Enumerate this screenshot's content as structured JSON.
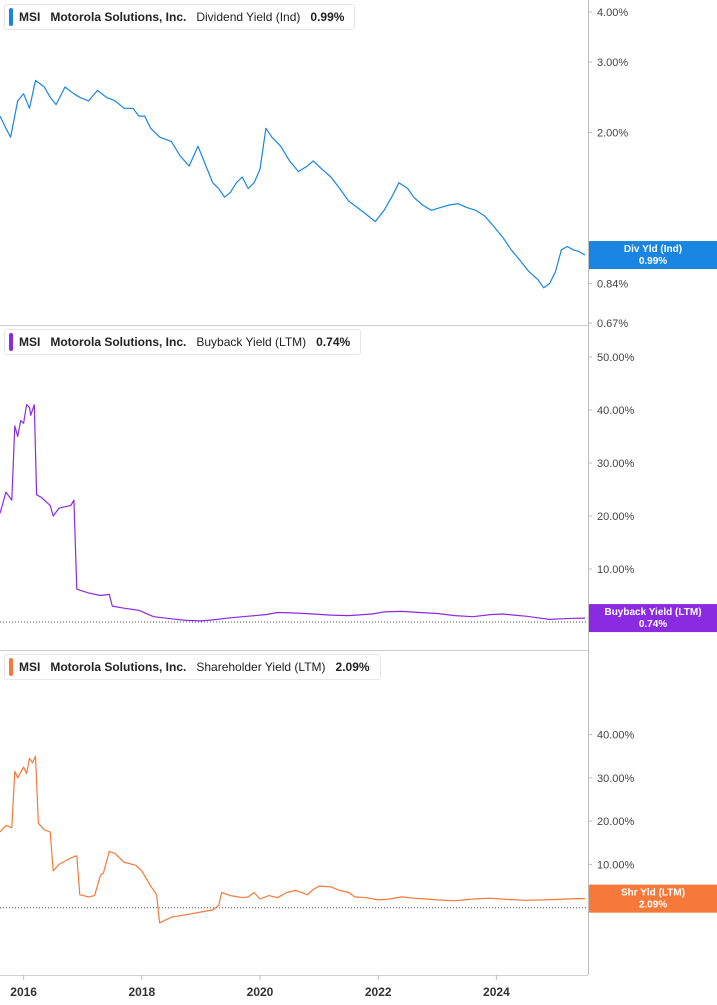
{
  "panels": [
    {
      "symbol": "MSI",
      "company": "Motorola Solutions, Inc.",
      "metric": "Dividend Yield (Ind)",
      "current": "0.99%",
      "tag_label": "Div Yld (Ind)",
      "color": "#1a85e0"
    },
    {
      "symbol": "MSI",
      "company": "Motorola Solutions, Inc.",
      "metric": "Buyback Yield (LTM)",
      "current": "0.74%",
      "tag_label": "Buyback Yield (LTM)",
      "color": "#8a2be2"
    },
    {
      "symbol": "MSI",
      "company": "Motorola Solutions, Inc.",
      "metric": "Shareholder Yield (LTM)",
      "current": "2.09%",
      "tag_label": "Shr Yld (LTM)",
      "color": "#f5793a"
    }
  ],
  "chart_data": [
    {
      "type": "line",
      "title": "MSI Motorola Solutions, Inc. Dividend Yield (Ind) 0.99%",
      "ylim": [
        0.67,
        4.0
      ],
      "yscale": "log",
      "ytick_labels": [
        "4.00%",
        "3.00%",
        "2.00%",
        "0.84%",
        "0.67%"
      ],
      "ytick_values": [
        4.0,
        3.0,
        2.0,
        0.84,
        0.67
      ],
      "xlim": [
        2015.6,
        2025.55
      ],
      "series": [
        {
          "x": [
            2015.6,
            2015.7,
            2015.78,
            2015.9,
            2016.0,
            2016.1,
            2016.2,
            2016.35,
            2016.45,
            2016.55,
            2016.7,
            2016.85,
            2016.95,
            2017.1,
            2017.25,
            2017.4,
            2017.55,
            2017.7,
            2017.85,
            2017.95,
            2018.05,
            2018.15,
            2018.3,
            2018.5,
            2018.65,
            2018.8,
            2018.95,
            2019.05,
            2019.2,
            2019.3,
            2019.4,
            2019.5,
            2019.6,
            2019.7,
            2019.8,
            2019.9,
            2020.0,
            2020.1,
            2020.2,
            2020.35,
            2020.5,
            2020.65,
            2020.8,
            2020.9,
            2021.05,
            2021.2,
            2021.35,
            2021.5,
            2021.65,
            2021.8,
            2021.95,
            2022.1,
            2022.25,
            2022.35,
            2022.5,
            2022.6,
            2022.75,
            2022.9,
            2023.05,
            2023.2,
            2023.35,
            2023.5,
            2023.65,
            2023.8,
            2023.95,
            2024.1,
            2024.25,
            2024.4,
            2024.55,
            2024.7,
            2024.8,
            2024.9,
            2025.0,
            2025.1,
            2025.2,
            2025.3,
            2025.4,
            2025.5
          ],
          "y": [
            2.2,
            2.05,
            1.95,
            2.4,
            2.5,
            2.3,
            2.7,
            2.6,
            2.45,
            2.35,
            2.6,
            2.5,
            2.45,
            2.4,
            2.55,
            2.45,
            2.4,
            2.3,
            2.3,
            2.2,
            2.2,
            2.05,
            1.95,
            1.9,
            1.75,
            1.65,
            1.85,
            1.7,
            1.5,
            1.45,
            1.38,
            1.42,
            1.5,
            1.55,
            1.45,
            1.5,
            1.62,
            2.05,
            1.95,
            1.85,
            1.7,
            1.6,
            1.65,
            1.7,
            1.62,
            1.55,
            1.45,
            1.35,
            1.3,
            1.25,
            1.2,
            1.28,
            1.4,
            1.5,
            1.45,
            1.38,
            1.32,
            1.28,
            1.3,
            1.32,
            1.33,
            1.3,
            1.28,
            1.24,
            1.17,
            1.1,
            1.02,
            0.96,
            0.9,
            0.86,
            0.82,
            0.84,
            0.9,
            1.02,
            1.04,
            1.02,
            1.01,
            0.99
          ]
        }
      ]
    },
    {
      "type": "line",
      "title": "MSI Motorola Solutions, Inc. Buyback Yield (LTM) 0.74%",
      "ylim": [
        0,
        50
      ],
      "ytick_labels": [
        "50.00%",
        "40.00%",
        "30.00%",
        "20.00%",
        "10.00%"
      ],
      "ytick_values": [
        50,
        40,
        30,
        20,
        10
      ],
      "reference_line": 0,
      "xlim": [
        2015.6,
        2025.55
      ],
      "series": [
        {
          "x": [
            2015.6,
            2015.7,
            2015.8,
            2015.85,
            2015.9,
            2015.95,
            2016.0,
            2016.05,
            2016.1,
            2016.12,
            2016.18,
            2016.22,
            2016.3,
            2016.45,
            2016.5,
            2016.6,
            2016.8,
            2016.85,
            2016.9,
            2016.95,
            2017.1,
            2017.3,
            2017.45,
            2017.5,
            2017.7,
            2017.95,
            2018.2,
            2018.5,
            2018.75,
            2019.0,
            2019.2,
            2019.5,
            2019.8,
            2020.1,
            2020.3,
            2020.6,
            2020.9,
            2021.2,
            2021.5,
            2021.9,
            2022.1,
            2022.4,
            2022.7,
            2023.0,
            2023.3,
            2023.6,
            2023.9,
            2024.1,
            2024.3,
            2024.5,
            2024.7,
            2024.9,
            2025.1,
            2025.3,
            2025.5
          ],
          "y": [
            20.5,
            24.5,
            23.0,
            37.0,
            35.0,
            38.0,
            37.5,
            41.0,
            40.5,
            39.0,
            41.0,
            24.0,
            23.5,
            22.0,
            20.0,
            21.5,
            22.0,
            23.0,
            6.2,
            6.0,
            5.5,
            5.0,
            5.2,
            3.0,
            2.6,
            2.2,
            1.0,
            0.6,
            0.3,
            0.2,
            0.4,
            0.8,
            1.1,
            1.4,
            1.8,
            1.7,
            1.5,
            1.3,
            1.2,
            1.5,
            1.9,
            2.0,
            1.8,
            1.6,
            1.2,
            1.0,
            1.4,
            1.5,
            1.3,
            1.1,
            0.8,
            0.5,
            0.6,
            0.7,
            0.74
          ]
        }
      ]
    },
    {
      "type": "line",
      "title": "MSI Motorola Solutions, Inc. Shareholder Yield (LTM) 2.09%",
      "ylim": [
        -4,
        48
      ],
      "ytick_labels": [
        "40.00%",
        "30.00%",
        "20.00%",
        "10.00%"
      ],
      "ytick_values": [
        40,
        30,
        20,
        10
      ],
      "reference_line": 0,
      "xlim": [
        2015.6,
        2025.55
      ],
      "series": [
        {
          "x": [
            2015.6,
            2015.7,
            2015.8,
            2015.85,
            2015.9,
            2016.0,
            2016.05,
            2016.1,
            2016.15,
            2016.2,
            2016.25,
            2016.35,
            2016.45,
            2016.5,
            2016.6,
            2016.8,
            2016.9,
            2016.95,
            2017.1,
            2017.2,
            2017.3,
            2017.35,
            2017.45,
            2017.55,
            2017.7,
            2017.9,
            2018.0,
            2018.15,
            2018.25,
            2018.3,
            2018.5,
            2018.8,
            2019.0,
            2019.2,
            2019.3,
            2019.35,
            2019.5,
            2019.7,
            2019.8,
            2019.9,
            2020.0,
            2020.15,
            2020.3,
            2020.45,
            2020.6,
            2020.8,
            2020.9,
            2021.0,
            2021.2,
            2021.35,
            2021.5,
            2021.6,
            2021.8,
            2022.0,
            2022.2,
            2022.4,
            2022.6,
            2022.8,
            2023.0,
            2023.3,
            2023.6,
            2023.9,
            2024.2,
            2024.5,
            2024.8,
            2025.0,
            2025.2,
            2025.4,
            2025.5
          ],
          "y": [
            17.5,
            19.0,
            18.5,
            31.5,
            30.0,
            32.5,
            31.0,
            34.5,
            33.5,
            35.0,
            19.5,
            18.0,
            17.5,
            8.5,
            10.0,
            11.5,
            12.0,
            3.0,
            2.5,
            2.8,
            7.5,
            8.0,
            13.0,
            12.5,
            10.5,
            9.8,
            8.5,
            5.0,
            3.0,
            -3.5,
            -2.2,
            -1.5,
            -1.0,
            -0.5,
            0.5,
            3.5,
            2.8,
            2.3,
            2.5,
            3.5,
            2.0,
            2.8,
            2.3,
            3.5,
            4.0,
            3.0,
            4.2,
            5.0,
            4.8,
            4.0,
            3.5,
            2.5,
            2.3,
            1.8,
            2.0,
            2.5,
            2.2,
            2.0,
            1.8,
            1.6,
            2.0,
            2.2,
            1.9,
            1.7,
            1.8,
            1.9,
            2.0,
            2.1,
            2.09
          ]
        }
      ]
    }
  ],
  "x_axis": {
    "tick_labels": [
      "2016",
      "2018",
      "2020",
      "2022",
      "2024"
    ],
    "tick_values": [
      2016,
      2018,
      2020,
      2022,
      2024
    ]
  }
}
